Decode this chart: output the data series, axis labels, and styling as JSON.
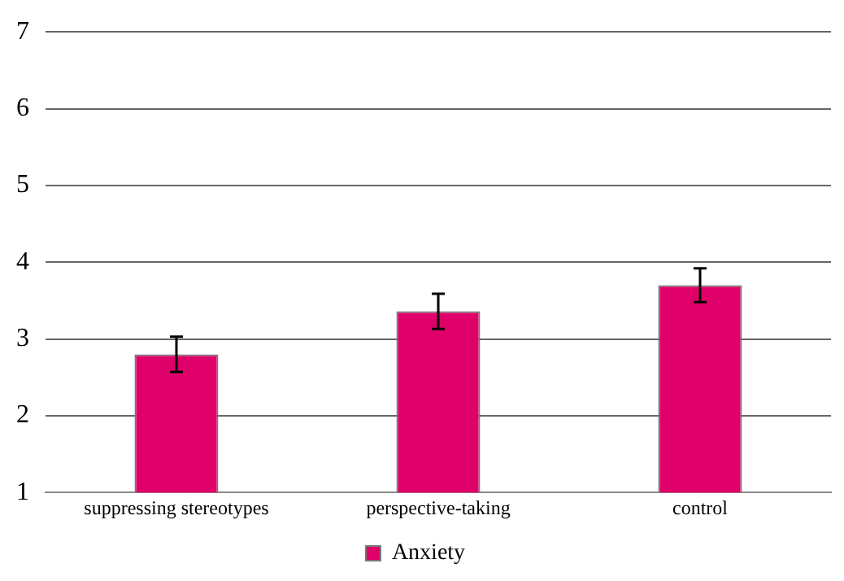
{
  "chart_data": {
    "type": "bar",
    "categories": [
      "suppressing stereotypes",
      "perspective-taking",
      "control"
    ],
    "series": [
      {
        "name": "Anxiety",
        "color": "#e0006a",
        "values": [
          2.8,
          3.36,
          3.7
        ],
        "errors": [
          0.23,
          0.23,
          0.22
        ]
      }
    ],
    "ylim": [
      1,
      7
    ],
    "yticks": [
      1,
      2,
      3,
      4,
      5,
      6,
      7
    ],
    "grid": "y",
    "legend": "bottom"
  }
}
